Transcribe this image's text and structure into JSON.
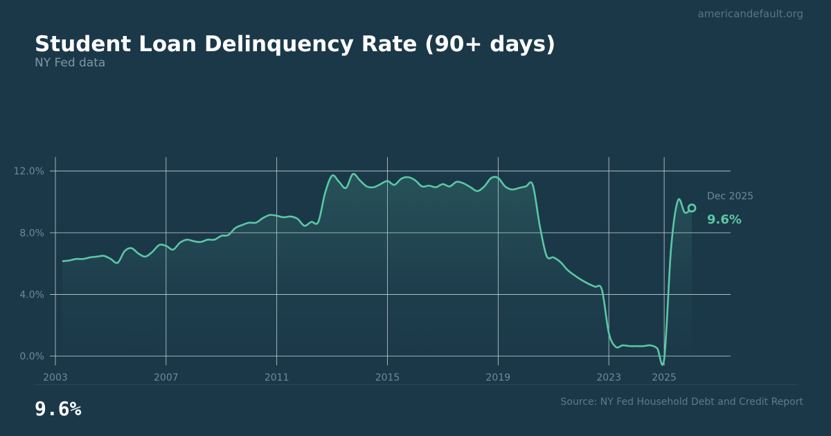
{
  "header": {
    "title": "Student Loan Delinquency Rate (90+ days)",
    "subtitle": "NY Fed data",
    "watermark": "americandefault.org"
  },
  "footer": {
    "headline_value": "9.6%",
    "source": "Source: NY Fed Household Debt and Credit Report"
  },
  "colors": {
    "background": "#1b3849",
    "line": "#5cc8a4",
    "grid": "#c8d2d8",
    "tick_text": "#6f8a96"
  },
  "chart_data": {
    "type": "area",
    "title": "",
    "xlabel": "",
    "ylabel": "",
    "x_start": "2003 Q1",
    "x_frequency": "quarterly",
    "x_ticks": [
      "2003",
      "2007",
      "2011",
      "2015",
      "2019",
      "2023",
      "2025"
    ],
    "y_ticks": [
      "0.0%",
      "4.0%",
      "8.0%",
      "12.0%"
    ],
    "xlim": [
      2003,
      2027.4
    ],
    "ylim": [
      -0.6,
      12.9
    ],
    "grid": true,
    "series": [
      {
        "values": [
          6.15,
          6.2,
          6.3,
          6.3,
          6.4,
          6.45,
          6.5,
          6.3,
          6.05,
          6.8,
          7.0,
          6.65,
          6.45,
          6.75,
          7.2,
          7.15,
          6.9,
          7.35,
          7.55,
          7.45,
          7.4,
          7.55,
          7.55,
          7.8,
          7.85,
          8.3,
          8.5,
          8.65,
          8.65,
          8.95,
          9.15,
          9.1,
          9.0,
          9.05,
          8.9,
          8.45,
          8.7,
          8.7,
          10.6,
          11.7,
          11.3,
          10.9,
          11.8,
          11.4,
          11.0,
          10.95,
          11.15,
          11.35,
          11.1,
          11.5,
          11.6,
          11.4,
          11.0,
          11.05,
          10.95,
          11.15,
          11.0,
          11.3,
          11.2,
          10.95,
          10.7,
          11.0,
          11.55,
          11.55,
          11.0,
          10.8,
          10.9,
          11.0,
          11.1,
          8.5,
          6.5,
          6.4,
          6.1,
          5.6,
          5.25,
          4.95,
          4.7,
          4.5,
          4.3,
          1.5,
          0.6,
          0.7,
          0.65,
          0.65,
          0.65,
          0.7,
          0.5,
          -0.2,
          7.0,
          10.1,
          9.3,
          9.6
        ]
      }
    ],
    "annotation": {
      "label": "Dec 2025",
      "value": "9.6%"
    }
  }
}
